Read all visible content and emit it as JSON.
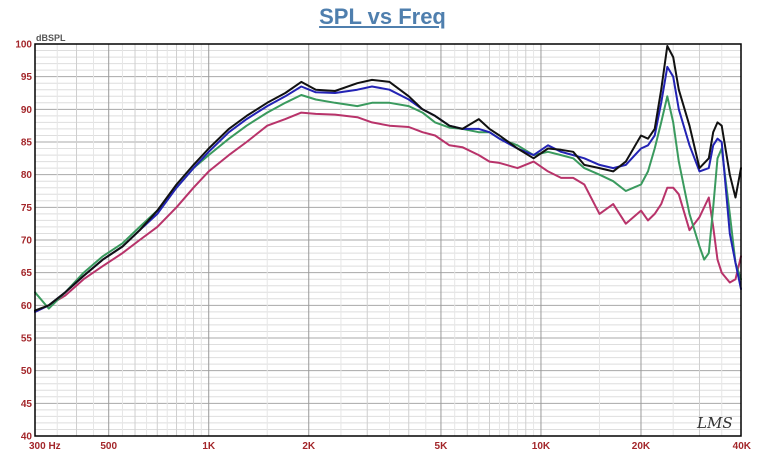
{
  "chart_data": {
    "type": "line",
    "title": "SPL vs Freq",
    "ylabel": "dBSPL",
    "xscale": "log",
    "xlim": [
      300,
      40000
    ],
    "ylim": [
      40,
      100
    ],
    "x_ticks": [
      {
        "value": 300,
        "label": "300 Hz"
      },
      {
        "value": 500,
        "label": "500"
      },
      {
        "value": 1000,
        "label": "1K"
      },
      {
        "value": 2000,
        "label": "2K"
      },
      {
        "value": 5000,
        "label": "5K"
      },
      {
        "value": 10000,
        "label": "10K"
      },
      {
        "value": 20000,
        "label": "20K"
      },
      {
        "value": 40000,
        "label": "40K"
      }
    ],
    "y_ticks": [
      100,
      95,
      90,
      85,
      80,
      75,
      70,
      65,
      60,
      55,
      50,
      45,
      40
    ],
    "logo": "LMS",
    "series": [
      {
        "name": "black",
        "color": "#111111",
        "x": [
          300,
          330,
          370,
          420,
          480,
          550,
          620,
          700,
          800,
          900,
          1000,
          1150,
          1300,
          1500,
          1700,
          1900,
          2100,
          2400,
          2800,
          3100,
          3500,
          4000,
          4400,
          4800,
          5300,
          5800,
          6500,
          7000,
          7500,
          8500,
          9500,
          10500,
          11500,
          12500,
          13500,
          15000,
          16500,
          18000,
          20000,
          21000,
          22000,
          23000,
          24000,
          25000,
          26000,
          28000,
          30000,
          32000,
          33000,
          34000,
          35000,
          37000,
          38500,
          40000
        ],
        "y": [
          59.2,
          60,
          62,
          64.5,
          67,
          69,
          71.5,
          74.5,
          78.5,
          81.5,
          84,
          87,
          89,
          91,
          92.5,
          94.2,
          93,
          92.8,
          94,
          94.5,
          94.2,
          92,
          90,
          89,
          87.5,
          87,
          88.5,
          87,
          86,
          84,
          82.5,
          84,
          83.8,
          83.5,
          81.5,
          81,
          80.5,
          82,
          86,
          85.5,
          87,
          93,
          99.7,
          98,
          93,
          87.5,
          81,
          82.5,
          86.5,
          88,
          87.5,
          80,
          76.5,
          81
        ]
      },
      {
        "name": "blue",
        "color": "#2323b4",
        "x": [
          300,
          330,
          370,
          420,
          480,
          550,
          620,
          700,
          800,
          900,
          1000,
          1150,
          1300,
          1500,
          1700,
          1900,
          2100,
          2400,
          2800,
          3100,
          3500,
          4000,
          4400,
          4800,
          5300,
          5800,
          6500,
          7000,
          7500,
          8500,
          9500,
          10500,
          11500,
          12500,
          13500,
          15000,
          16500,
          18000,
          20000,
          21000,
          22000,
          23000,
          24000,
          25000,
          26000,
          28000,
          30000,
          32000,
          33000,
          34000,
          35000,
          37000,
          38500,
          40000
        ],
        "y": [
          59,
          60,
          62,
          64.5,
          67,
          69,
          71.5,
          74,
          78,
          81,
          83.5,
          86.5,
          88.5,
          90.5,
          92,
          93.5,
          92.6,
          92.5,
          93,
          93.5,
          93,
          91.5,
          90,
          89,
          87.5,
          87,
          87,
          86.5,
          85.5,
          84,
          83,
          84.5,
          83.5,
          83,
          82.5,
          81.5,
          81,
          81.5,
          84,
          84.5,
          86,
          91,
          96.5,
          95,
          90,
          84.5,
          80.5,
          81,
          84.5,
          85.5,
          85,
          71,
          66.5,
          62.5
        ]
      },
      {
        "name": "green",
        "color": "#3a9a5e",
        "x": [
          300,
          330,
          370,
          420,
          480,
          550,
          620,
          700,
          800,
          900,
          1000,
          1150,
          1300,
          1500,
          1700,
          1900,
          2100,
          2400,
          2800,
          3100,
          3500,
          4000,
          4400,
          4800,
          5300,
          5800,
          6500,
          7000,
          7500,
          8500,
          9500,
          10500,
          11500,
          12500,
          13500,
          15000,
          16500,
          18000,
          20000,
          21000,
          22000,
          23000,
          24000,
          25000,
          26000,
          28000,
          30000,
          31000,
          32000,
          33000,
          34000,
          35000,
          37000,
          38500,
          40000
        ],
        "y": [
          62,
          59.5,
          62,
          65,
          67.5,
          69.5,
          72,
          74.5,
          78,
          81,
          83,
          85.5,
          87.5,
          89.5,
          91,
          92.2,
          91.5,
          91,
          90.5,
          91,
          91,
          90.5,
          89.5,
          88,
          87.2,
          87,
          86.5,
          86.5,
          85.5,
          84.5,
          83,
          83.5,
          83,
          82.5,
          81,
          80,
          79,
          77.5,
          78.5,
          80.5,
          84,
          88,
          92,
          88,
          82,
          74,
          69,
          67,
          68,
          75,
          82.5,
          84,
          74,
          66.5,
          64
        ]
      },
      {
        "name": "magenta",
        "color": "#b8336a",
        "x": [
          300,
          330,
          370,
          420,
          480,
          550,
          620,
          700,
          800,
          900,
          1000,
          1150,
          1300,
          1500,
          1700,
          1900,
          2100,
          2400,
          2800,
          3100,
          3500,
          4000,
          4400,
          4800,
          5300,
          5800,
          6500,
          7000,
          7500,
          8500,
          9500,
          10500,
          11500,
          12500,
          13500,
          15000,
          16500,
          18000,
          20000,
          21000,
          22000,
          23000,
          24000,
          25000,
          26000,
          28000,
          30000,
          32000,
          33000,
          34000,
          35000,
          37000,
          38500,
          40000
        ],
        "y": [
          59,
          60,
          61.5,
          64,
          66,
          68,
          70,
          72,
          75,
          78,
          80.5,
          83,
          85,
          87.5,
          88.5,
          89.5,
          89.3,
          89.2,
          88.8,
          88,
          87.5,
          87.3,
          86.5,
          86,
          84.5,
          84.2,
          83,
          82,
          81.8,
          81,
          82,
          80.5,
          79.5,
          79.5,
          78.5,
          74,
          75.5,
          72.5,
          74.5,
          73,
          74,
          75.5,
          78,
          78,
          77,
          71.5,
          73.5,
          76.5,
          72,
          67,
          65,
          63.5,
          64,
          67.5
        ]
      }
    ]
  }
}
